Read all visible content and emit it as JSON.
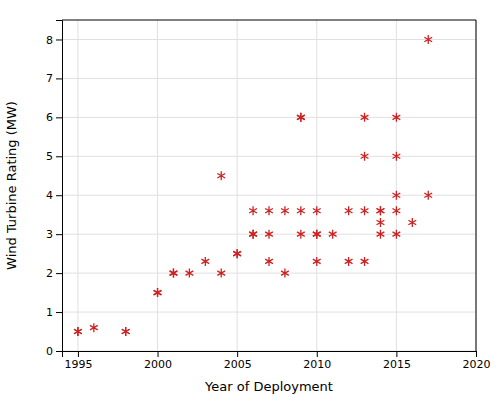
{
  "chart_data": {
    "type": "scatter",
    "xlabel": "Year of Deployment",
    "ylabel": "Wind Turbine Rating (MW)",
    "x": [
      1995,
      1995,
      1996,
      1998,
      1998,
      2000,
      2000,
      2001,
      2001,
      2002,
      2003,
      2004,
      2004,
      2005,
      2005,
      2006,
      2006,
      2006,
      2007,
      2007,
      2007,
      2008,
      2008,
      2009,
      2009,
      2009,
      2009,
      2010,
      2010,
      2010,
      2010,
      2011,
      2012,
      2012,
      2013,
      2013,
      2013,
      2013,
      2014,
      2014,
      2014,
      2014,
      2015,
      2015,
      2015,
      2015,
      2015,
      2016,
      2017,
      2017
    ],
    "values": [
      0.5,
      0.5,
      0.6,
      0.5,
      0.5,
      1.5,
      1.5,
      2.0,
      2.0,
      2.0,
      2.3,
      2.0,
      4.5,
      2.5,
      2.5,
      3.0,
      3.0,
      3.6,
      2.3,
      3.0,
      3.6,
      2.0,
      3.6,
      3.0,
      3.6,
      6.0,
      6.0,
      2.3,
      3.0,
      3.0,
      3.6,
      3.0,
      2.3,
      3.6,
      2.3,
      3.6,
      5.0,
      6.0,
      3.0,
      3.3,
      3.6,
      3.6,
      3.0,
      3.6,
      4.0,
      5.0,
      6.0,
      3.3,
      4.0,
      8.0
    ],
    "color": "#CC2222",
    "marker": "asterisk",
    "xlim": [
      1994,
      2020
    ],
    "ylim": [
      0,
      8.5
    ],
    "xticks": [
      1995,
      2000,
      2005,
      2010,
      2015,
      2020
    ],
    "yticks": [
      0,
      1,
      2,
      3,
      4,
      5,
      6,
      7,
      8
    ],
    "grid": true
  }
}
